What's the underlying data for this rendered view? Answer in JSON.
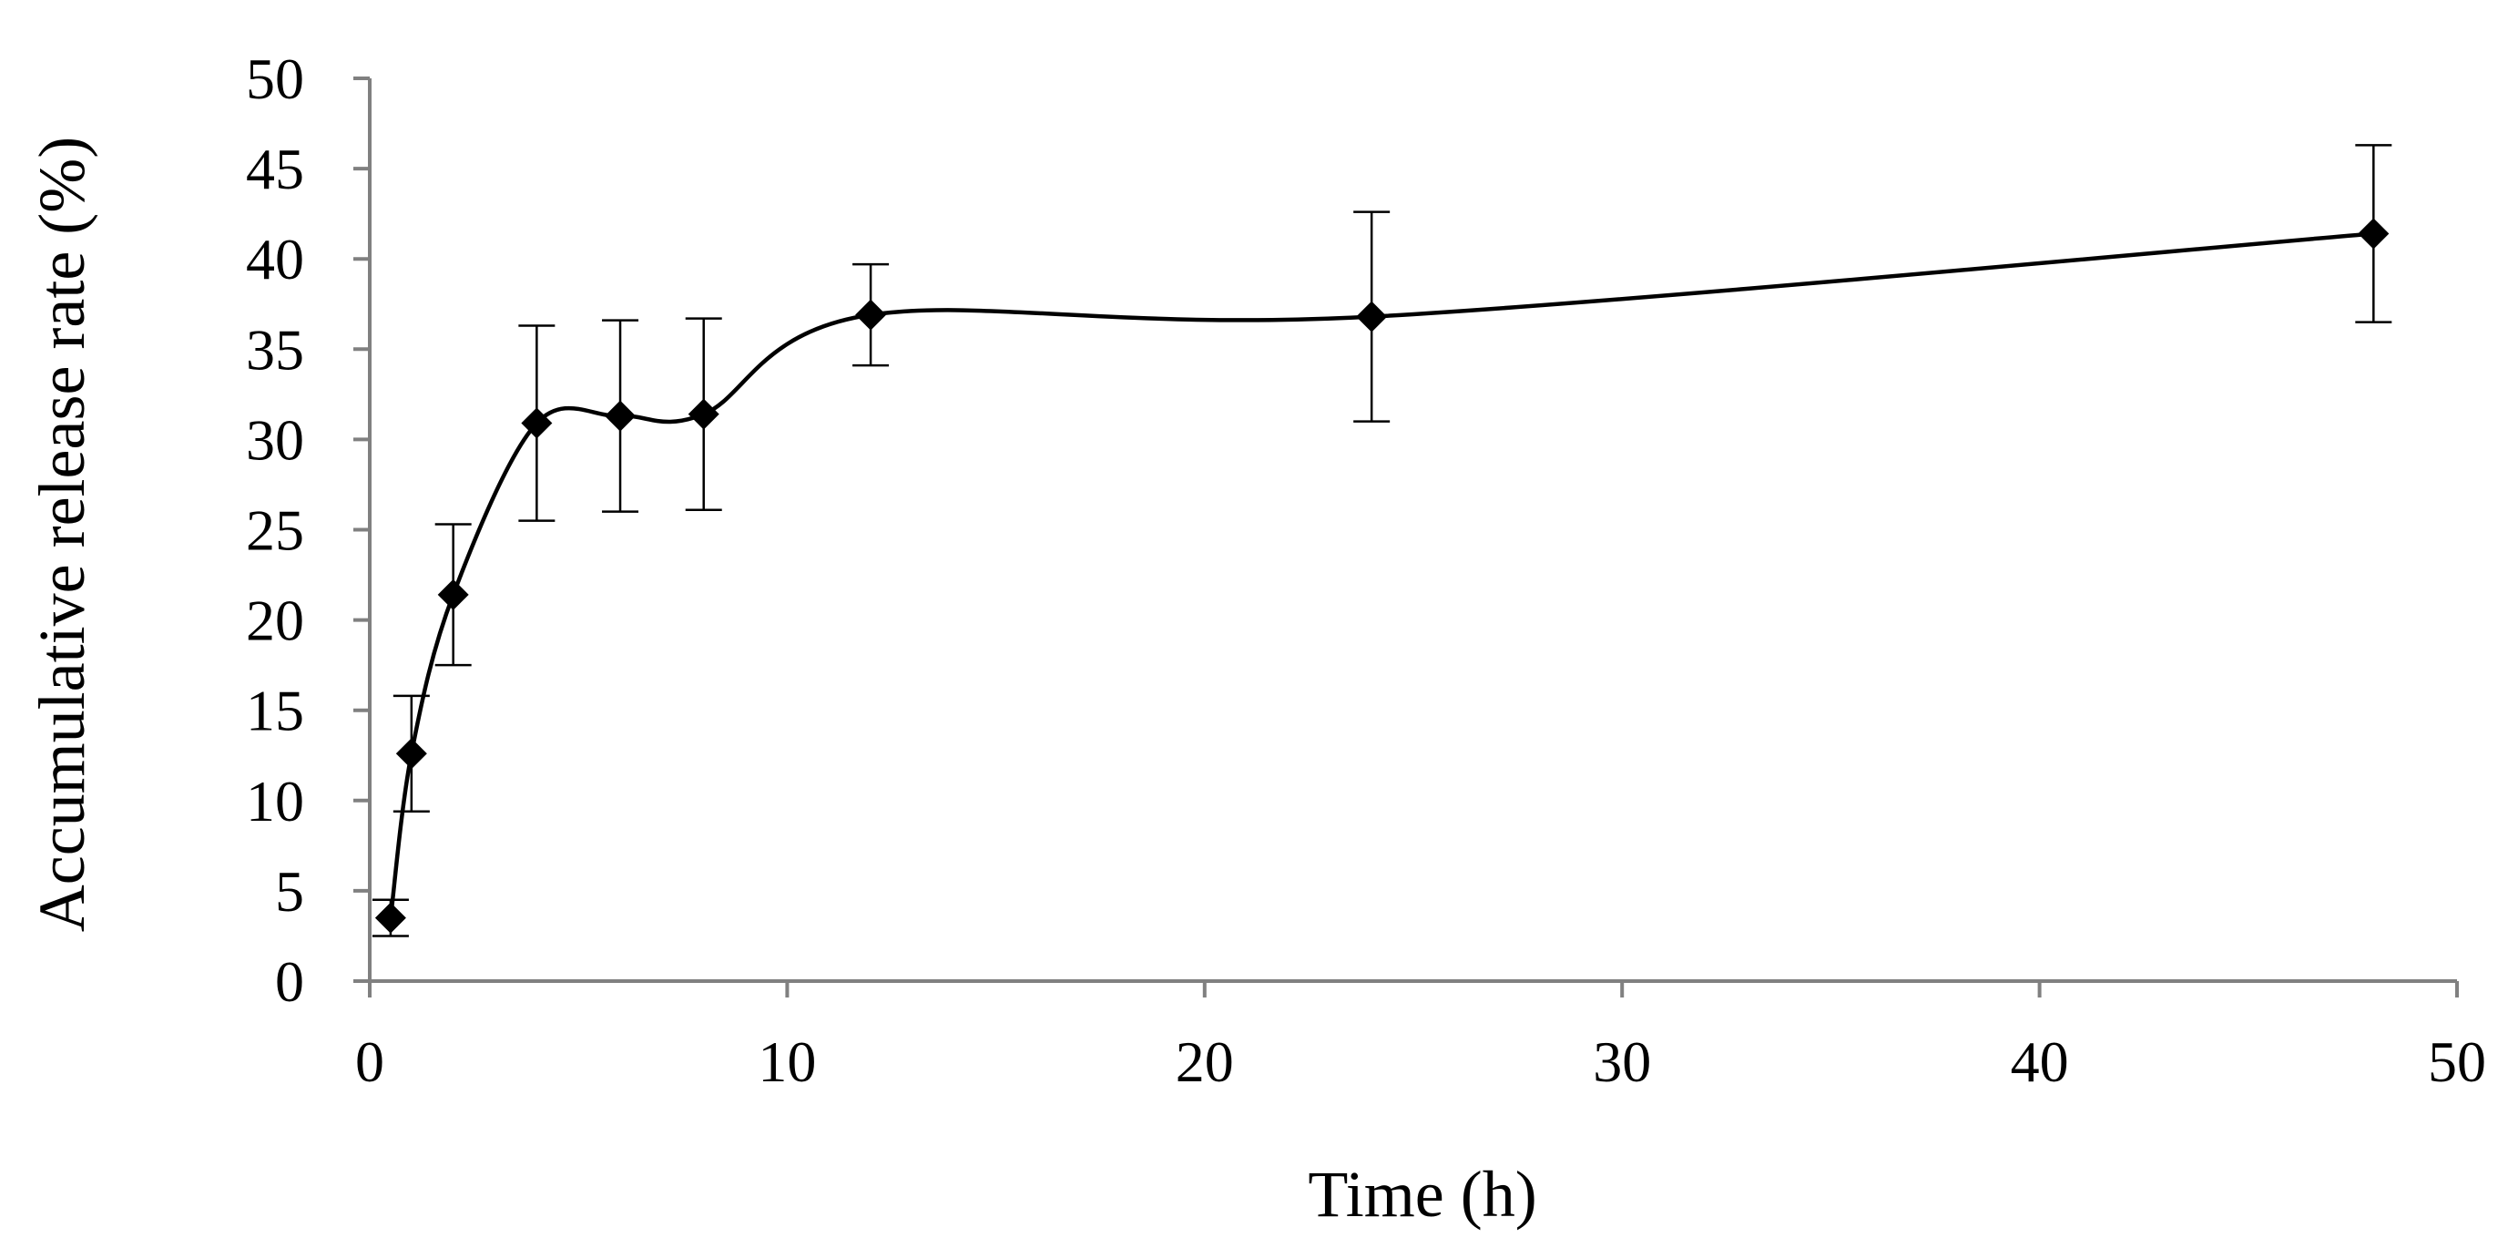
{
  "chart_data": {
    "type": "line",
    "title": "",
    "xlabel": "Time (h)",
    "ylabel": "Accumulative release rate (%)",
    "xlim": [
      0,
      50
    ],
    "ylim": [
      0,
      50
    ],
    "xticks": [
      0,
      10,
      20,
      30,
      40,
      50
    ],
    "yticks": [
      0,
      5,
      10,
      15,
      20,
      25,
      30,
      35,
      40,
      45,
      50
    ],
    "grid": false,
    "legend": "none",
    "smoothed": true,
    "series": [
      {
        "name": "Accumulative release rate",
        "color": "#000000",
        "marker": "diamond",
        "x": [
          0.5,
          1,
          2,
          4,
          6,
          8,
          12,
          24,
          48
        ],
        "y": [
          3.5,
          12.6,
          21.4,
          30.9,
          31.3,
          31.4,
          36.9,
          36.8,
          41.4
        ],
        "error": [
          1.0,
          3.2,
          3.9,
          5.4,
          5.3,
          5.3,
          2.8,
          5.8,
          4.9
        ]
      }
    ]
  }
}
